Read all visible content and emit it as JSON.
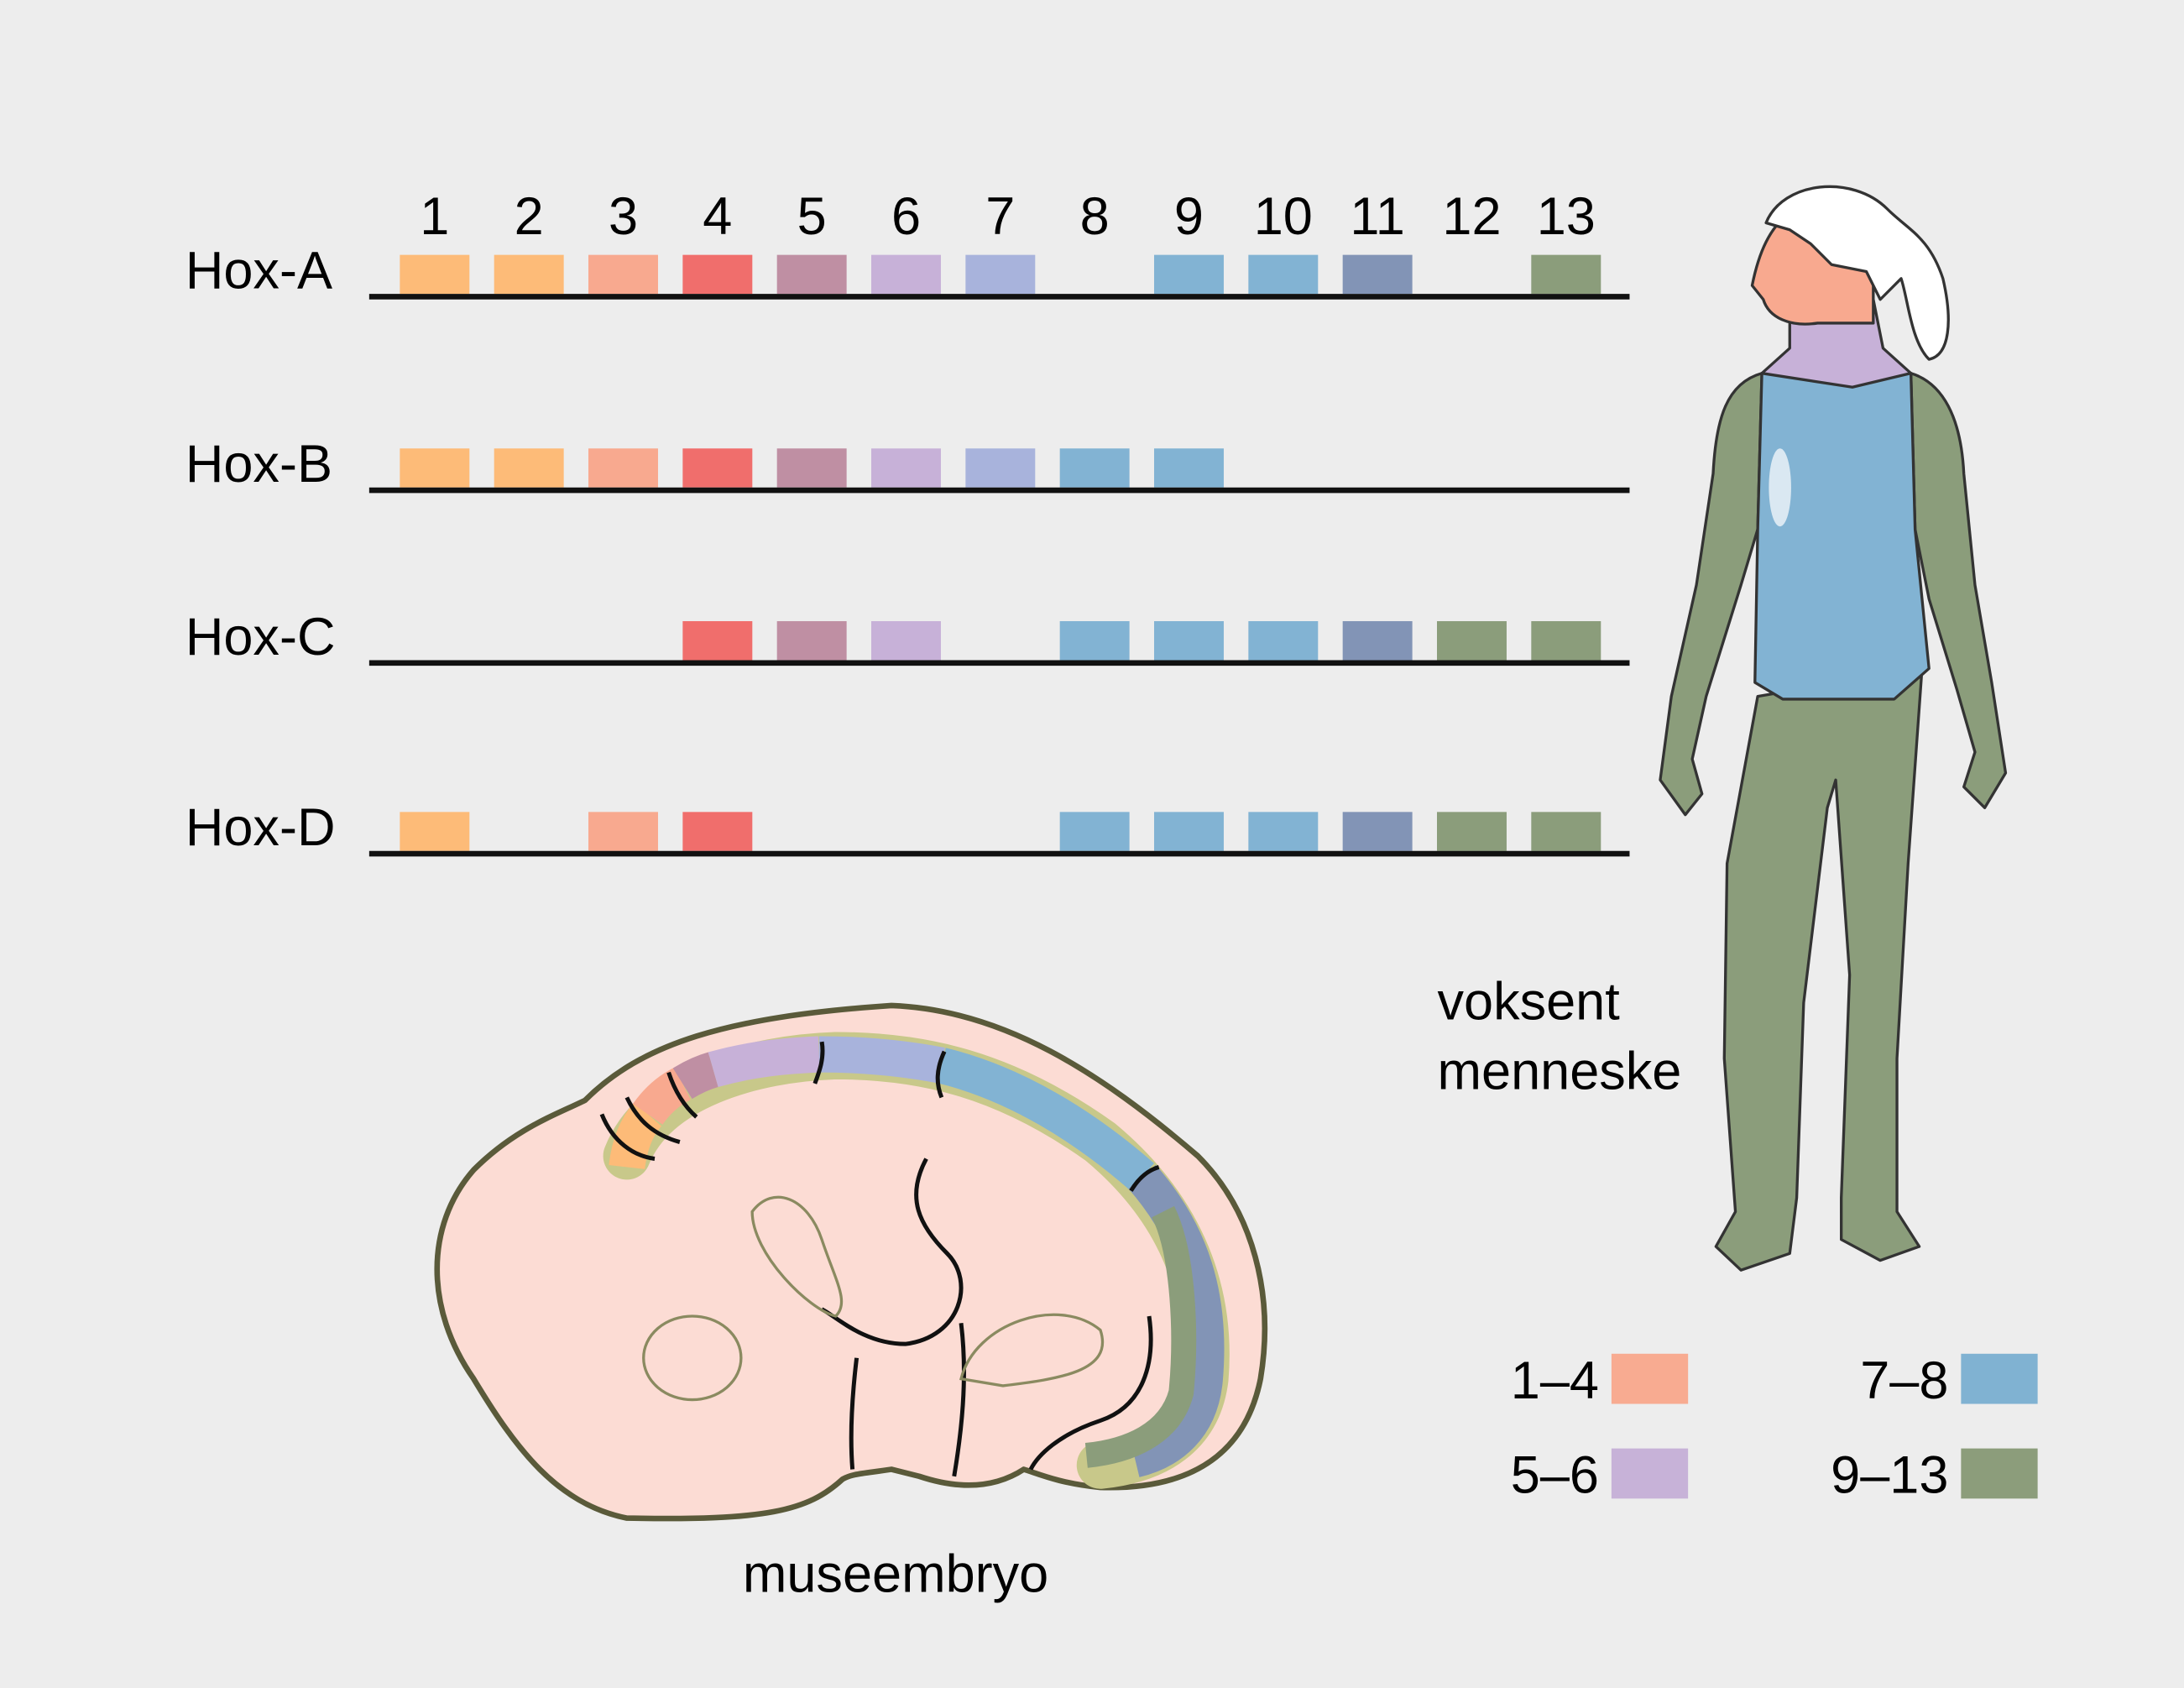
{
  "gene_numbers": [
    "1",
    "2",
    "3",
    "4",
    "5",
    "6",
    "7",
    "8",
    "9",
    "10",
    "11",
    "12",
    "13"
  ],
  "gene_colors": [
    "#fdbb78",
    "#fdbb78",
    "#f8a98f",
    "#f06e6c",
    "#bf8fa3",
    "#c7b1d8",
    "#a8b3dc",
    "#82b3d3",
    "#82b3d3",
    "#82b3d3",
    "#8294b6",
    "#8b9d7b",
    "#8b9d7b"
  ],
  "clusters": [
    {
      "label": "Hox-A",
      "genes": [
        1,
        2,
        3,
        4,
        5,
        6,
        7,
        9,
        10,
        11,
        13
      ]
    },
    {
      "label": "Hox-B",
      "genes": [
        1,
        2,
        3,
        4,
        5,
        6,
        7,
        8,
        9
      ]
    },
    {
      "label": "Hox-C",
      "genes": [
        4,
        5,
        6,
        8,
        9,
        10,
        11,
        12,
        13
      ]
    },
    {
      "label": "Hox-D",
      "genes": [
        1,
        3,
        4,
        8,
        9,
        10,
        11,
        12,
        13
      ]
    }
  ],
  "human": {
    "label_line1": "voksent",
    "label_line2": "menneske"
  },
  "embryo": {
    "label": "museembryo"
  },
  "legend": [
    {
      "label": "1–4",
      "color": "#f8ab91"
    },
    {
      "label": "5–6",
      "color": "#c7b2d8"
    },
    {
      "label": "7–8",
      "color": "#80b2d2"
    },
    {
      "label": "9–13",
      "color": "#8c9d7b"
    }
  ]
}
